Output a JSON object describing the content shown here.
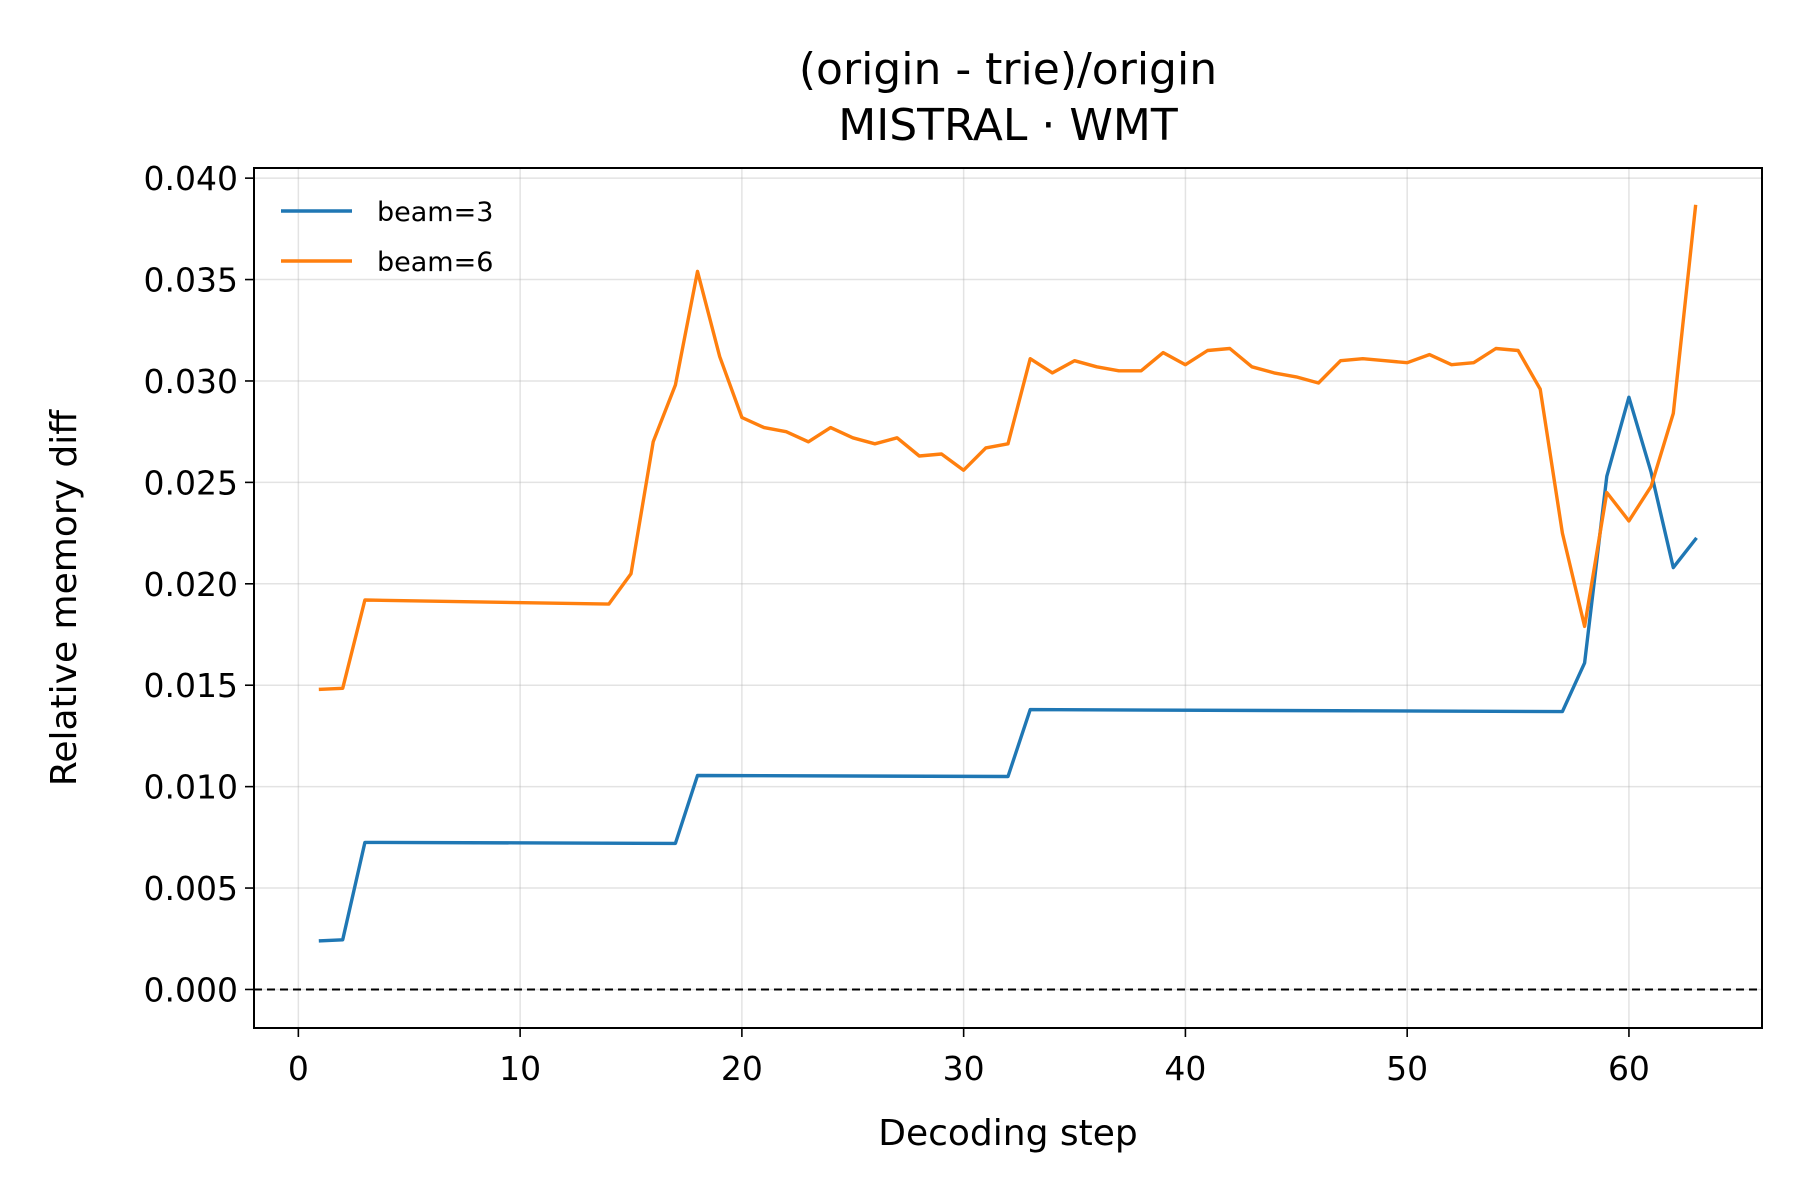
{
  "chart_data": {
    "type": "line",
    "title": "(origin - trie)/origin",
    "subtitle": "MISTRAL · WMT",
    "xlabel": "Decoding step",
    "ylabel": "Relative memory diff",
    "xlim": [
      -2,
      66
    ],
    "ylim": [
      -0.0019,
      0.0405
    ],
    "xticks": [
      0,
      10,
      20,
      30,
      40,
      50,
      60
    ],
    "yticks": [
      0.0,
      0.005,
      0.01,
      0.015,
      0.02,
      0.025,
      0.03,
      0.035,
      0.04
    ],
    "ytick_labels": [
      "0.000",
      "0.005",
      "0.010",
      "0.015",
      "0.020",
      "0.025",
      "0.030",
      "0.035",
      "0.040"
    ],
    "grid": true,
    "reference_line": {
      "y": 0,
      "style": "dashed",
      "color": "#000000"
    },
    "legend_position": "top-left",
    "series": [
      {
        "name": "beam=3",
        "color": "#1f77b4",
        "x": [
          1,
          2,
          3,
          17,
          18,
          32,
          33,
          57,
          58,
          59,
          60,
          61,
          62,
          63
        ],
        "y": [
          0.0024,
          0.00245,
          0.00725,
          0.0072,
          0.01055,
          0.0105,
          0.0138,
          0.0137,
          0.0161,
          0.0253,
          0.0292,
          0.0255,
          0.0208,
          0.0222
        ]
      },
      {
        "name": "beam=6",
        "color": "#ff7f0e",
        "x": [
          1,
          2,
          3,
          14,
          15,
          16,
          17,
          18,
          19,
          20,
          21,
          22,
          23,
          24,
          25,
          26,
          27,
          28,
          29,
          30,
          31,
          32,
          33,
          34,
          35,
          36,
          37,
          38,
          39,
          40,
          41,
          42,
          43,
          44,
          45,
          46,
          47,
          48,
          49,
          50,
          51,
          52,
          53,
          54,
          55,
          56,
          57,
          58,
          59,
          60,
          61,
          62,
          63
        ],
        "y": [
          0.0148,
          0.01485,
          0.0192,
          0.019,
          0.0205,
          0.027,
          0.0298,
          0.0354,
          0.0312,
          0.0282,
          0.0277,
          0.0275,
          0.027,
          0.0277,
          0.0272,
          0.0269,
          0.0272,
          0.0263,
          0.0264,
          0.0256,
          0.0267,
          0.0269,
          0.0311,
          0.0304,
          0.031,
          0.0307,
          0.0305,
          0.0305,
          0.0314,
          0.0308,
          0.0315,
          0.0316,
          0.0307,
          0.0304,
          0.0302,
          0.0299,
          0.031,
          0.0311,
          0.031,
          0.0309,
          0.0313,
          0.0308,
          0.0309,
          0.0316,
          0.0315,
          0.0296,
          0.0225,
          0.0179,
          0.0245,
          0.0231,
          0.0248,
          0.0284,
          0.0386
        ]
      }
    ]
  }
}
